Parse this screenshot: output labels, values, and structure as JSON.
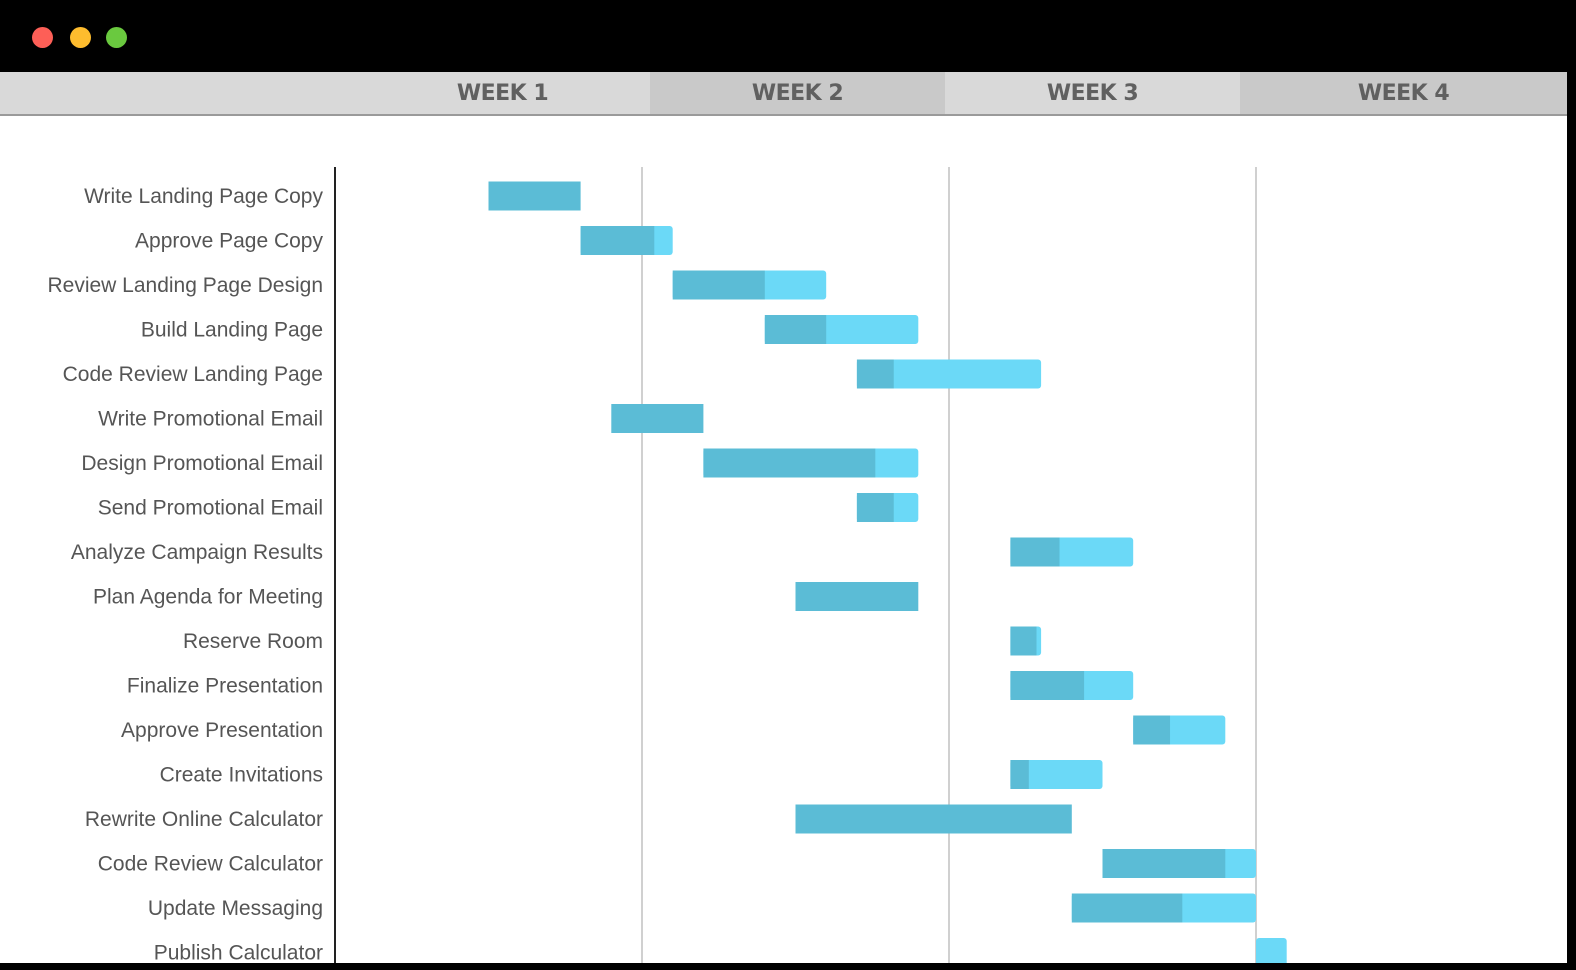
{
  "window": {
    "controls": [
      {
        "name": "close",
        "color": "#fd5f57"
      },
      {
        "name": "minimize",
        "color": "#febc2e"
      },
      {
        "name": "maximize",
        "color": "#6ac93f"
      }
    ]
  },
  "header": {
    "weeks": [
      "WEEK 1",
      "WEEK 2",
      "WEEK 3",
      "WEEK 4"
    ]
  },
  "chart_data": {
    "type": "gantt",
    "xlim": [
      0,
      40
    ],
    "gridlines": [
      10,
      20,
      30
    ],
    "colors": {
      "completed": "#5bbcd6",
      "remaining": "#6bd9f7"
    },
    "tasks": [
      {
        "name": "Write Landing Page Copy",
        "start": 5,
        "end": 8,
        "progress": 1.0
      },
      {
        "name": "Approve Page Copy",
        "start": 8,
        "end": 11,
        "progress": 0.8
      },
      {
        "name": "Review Landing Page Design",
        "start": 11,
        "end": 16,
        "progress": 0.6
      },
      {
        "name": "Build Landing Page",
        "start": 14,
        "end": 19,
        "progress": 0.4
      },
      {
        "name": "Code Review Landing Page",
        "start": 17,
        "end": 23,
        "progress": 0.2
      },
      {
        "name": "Write Promotional Email",
        "start": 9,
        "end": 12,
        "progress": 1.0
      },
      {
        "name": "Design Promotional Email",
        "start": 12,
        "end": 19,
        "progress": 0.8
      },
      {
        "name": "Send Promotional Email",
        "start": 17,
        "end": 19,
        "progress": 0.6
      },
      {
        "name": "Analyze Campaign Results",
        "start": 22,
        "end": 26,
        "progress": 0.4
      },
      {
        "name": "Plan Agenda for Meeting",
        "start": 15,
        "end": 19,
        "progress": 1.0
      },
      {
        "name": "Reserve Room",
        "start": 22,
        "end": 23,
        "progress": 0.85
      },
      {
        "name": "Finalize Presentation",
        "start": 22,
        "end": 26,
        "progress": 0.6
      },
      {
        "name": "Approve Presentation",
        "start": 26,
        "end": 29,
        "progress": 0.4
      },
      {
        "name": "Create Invitations",
        "start": 22,
        "end": 25,
        "progress": 0.2
      },
      {
        "name": "Rewrite Online Calculator",
        "start": 15,
        "end": 24,
        "progress": 1.0
      },
      {
        "name": "Code Review Calculator",
        "start": 25,
        "end": 30,
        "progress": 0.8
      },
      {
        "name": "Update Messaging",
        "start": 24,
        "end": 30,
        "progress": 0.6
      },
      {
        "name": "Publish Calculator",
        "start": 30,
        "end": 31,
        "progress": 0.0
      }
    ]
  }
}
